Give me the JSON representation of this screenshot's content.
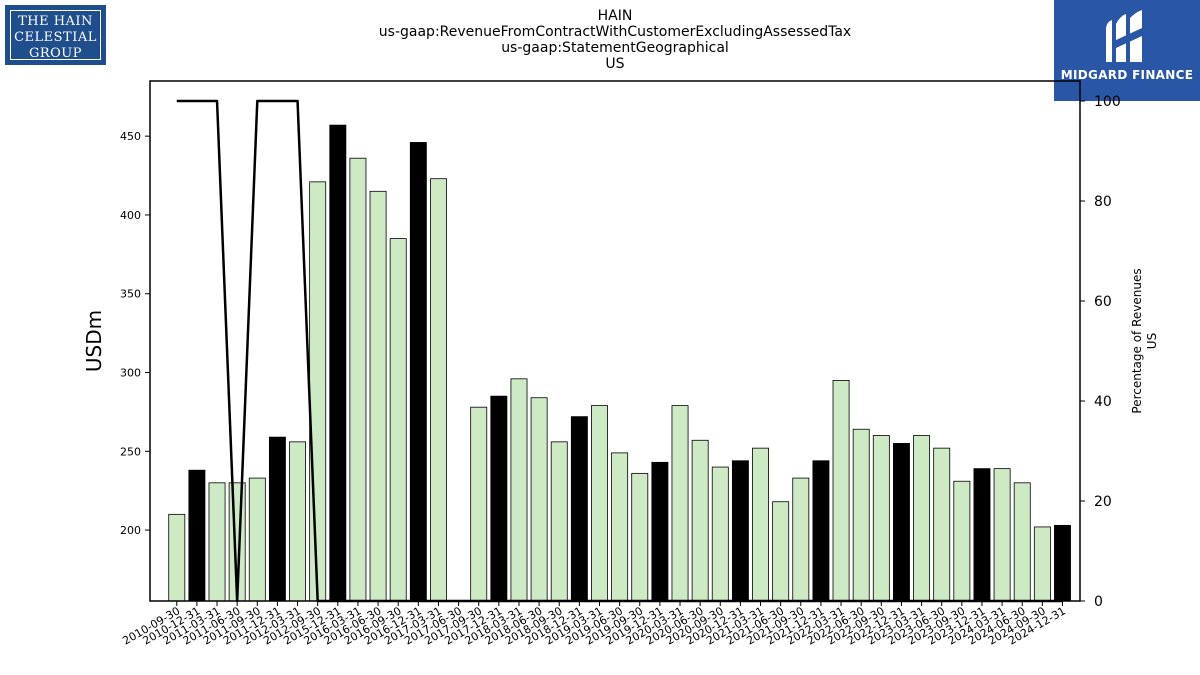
{
  "title_lines": [
    "HAIN",
    "us-gaap:RevenueFromContractWithCustomerExcludingAssessedTax",
    "us-gaap:StatementGeographical",
    "US"
  ],
  "logos": {
    "left_text": [
      "THE HAIN",
      "CELESTIAL",
      "GROUP"
    ],
    "right_text": "MIDGARD FINANCE"
  },
  "colors": {
    "bar_light": "#cdeac5",
    "bar_dark": "#000000",
    "line": "#000000"
  },
  "chart_data": {
    "type": "bar",
    "ylabel": "USDm",
    "y2label_lines": [
      "Percentage of Revenues",
      "US"
    ],
    "ylim": [
      155,
      485
    ],
    "yticks": [
      200,
      250,
      300,
      350,
      400,
      450
    ],
    "y2lim": [
      0,
      104
    ],
    "y2ticks": [
      0,
      20,
      40,
      60,
      80,
      100
    ],
    "categories": [
      "2010-09-30",
      "2010-12-31",
      "2011-03-31",
      "2011-06-30",
      "2011-09-30",
      "2011-12-31",
      "2012-03-31",
      "2012-09-30",
      "2015-12-31",
      "2016-03-31",
      "2016-06-30",
      "2016-09-30",
      "2016-12-31",
      "2017-03-31",
      "2017-06-30",
      "2017-09-30",
      "2017-12-31",
      "2018-03-31",
      "2018-06-30",
      "2018-09-30",
      "2018-12-31",
      "2019-03-31",
      "2019-06-30",
      "2019-09-30",
      "2019-12-31",
      "2020-03-31",
      "2020-06-30",
      "2020-09-30",
      "2020-12-31",
      "2021-03-31",
      "2021-06-30",
      "2021-09-30",
      "2021-12-31",
      "2022-03-31",
      "2022-06-30",
      "2022-09-30",
      "2022-12-31",
      "2023-03-31",
      "2023-06-30",
      "2023-09-30",
      "2023-12-31",
      "2024-03-31",
      "2024-06-30",
      "2024-09-30",
      "2024-12-31"
    ],
    "series": [
      {
        "kind": "bar",
        "values": [
          210,
          238,
          230,
          230,
          233,
          259,
          256,
          421,
          457,
          436,
          415,
          385,
          446,
          423,
          null,
          278,
          285,
          296,
          284,
          256,
          272,
          279,
          249,
          236,
          243,
          279,
          257,
          240,
          244,
          252,
          218,
          233,
          244,
          295,
          264,
          260,
          255,
          260,
          252,
          231,
          239,
          239,
          230,
          202,
          203
        ],
        "highlight": [
          false,
          true,
          false,
          false,
          false,
          true,
          false,
          false,
          true,
          false,
          false,
          false,
          true,
          false,
          false,
          false,
          true,
          false,
          false,
          false,
          true,
          false,
          false,
          false,
          true,
          false,
          false,
          false,
          true,
          false,
          false,
          false,
          true,
          false,
          false,
          false,
          true,
          false,
          false,
          false,
          true,
          false,
          false,
          false,
          true
        ]
      },
      {
        "kind": "line",
        "axis": "right",
        "values": [
          100,
          100,
          100,
          0,
          100,
          100,
          100,
          0,
          0,
          0,
          0,
          0,
          0,
          0,
          0,
          0,
          0,
          0,
          0,
          0,
          0,
          0,
          0,
          0,
          0,
          0,
          0,
          0,
          0,
          0,
          0,
          0,
          0,
          0,
          0,
          0,
          0,
          0,
          0,
          0,
          0,
          0,
          0,
          0,
          0
        ]
      }
    ]
  }
}
